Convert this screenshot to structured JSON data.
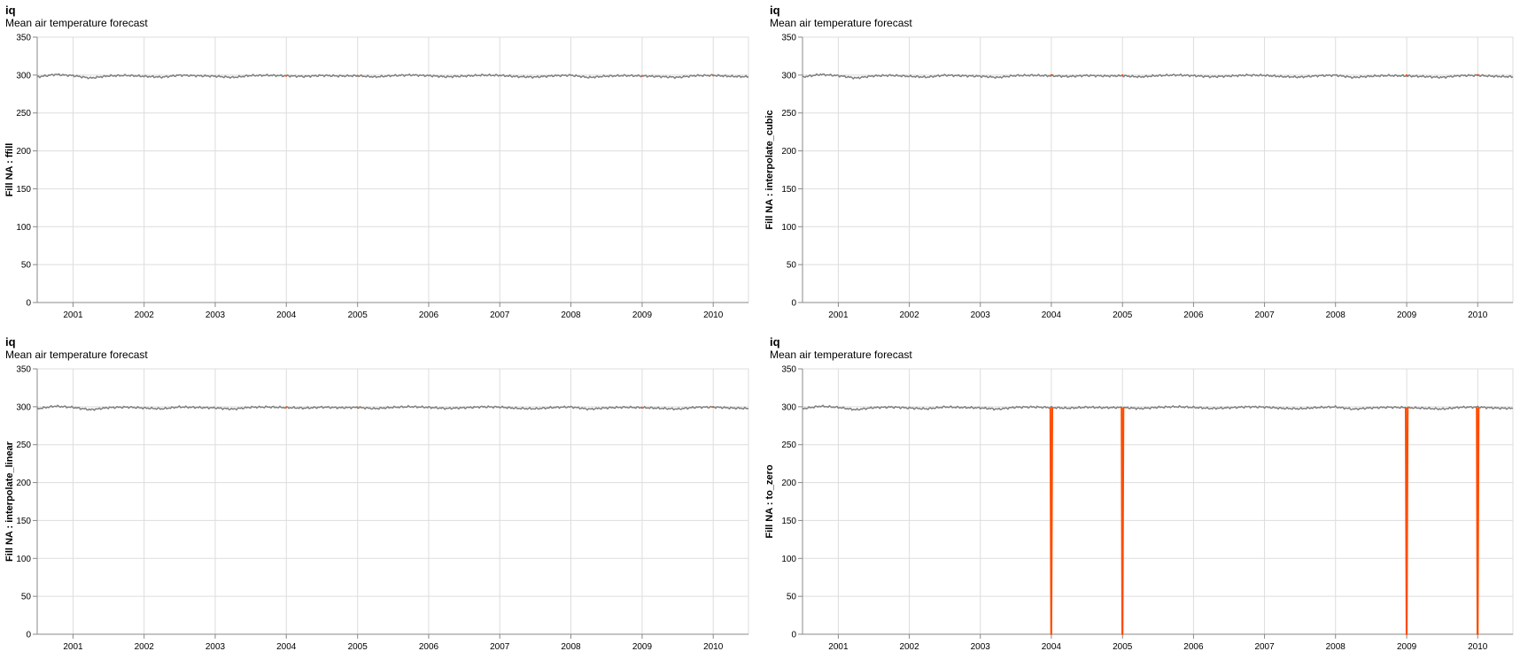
{
  "colors": {
    "observed": "#808080",
    "filled": "#ff4c00",
    "grid": "#dddddd",
    "axis": "#888888"
  },
  "chart_data": [
    {
      "type": "line",
      "title": "iq",
      "subtitle": "Mean air temperature forecast",
      "ylabel": "Fill NA : ffill",
      "xlabel": "",
      "ylim": [
        0,
        350
      ],
      "xlim": [
        "2000-07-01",
        "2010-07-01"
      ],
      "y_ticks": [
        0,
        50,
        100,
        150,
        200,
        250,
        300,
        350
      ],
      "x_ticks": [
        "2001",
        "2002",
        "2003",
        "2004",
        "2005",
        "2006",
        "2007",
        "2008",
        "2009",
        "2010"
      ],
      "grid": true,
      "series": [
        {
          "x": [
            "2000-07-01",
            "2000-10-01",
            "2001-01-01",
            "2001-04-01",
            "2001-07-01",
            "2001-10-01",
            "2002-01-01",
            "2002-04-01",
            "2002-07-01",
            "2002-10-01",
            "2003-01-01",
            "2003-04-01",
            "2003-07-01",
            "2003-10-01",
            "2004-01-01",
            "2004-04-01",
            "2004-07-01",
            "2004-10-01",
            "2005-01-01",
            "2005-04-01",
            "2005-07-01",
            "2005-10-01",
            "2006-01-01",
            "2006-04-01",
            "2006-07-01",
            "2006-10-01",
            "2007-01-01",
            "2007-04-01",
            "2007-07-01",
            "2007-10-01",
            "2008-01-01",
            "2008-04-01",
            "2008-07-01",
            "2008-10-01",
            "2009-01-01",
            "2009-04-01",
            "2009-07-01",
            "2009-10-01",
            "2010-01-01",
            "2010-04-01",
            "2010-07-01"
          ],
          "values": [
            297.5,
            300.8,
            299.2,
            296.1,
            298.9,
            299.6,
            298.4,
            297.3,
            299.8,
            299.1,
            298.5,
            296.9,
            299.4,
            299.7,
            299.0,
            298.2,
            299.5,
            298.8,
            299.1,
            297.6,
            299.3,
            300.1,
            299.2,
            297.8,
            298.7,
            299.9,
            299.6,
            298.0,
            297.4,
            299.1,
            299.8,
            296.9,
            298.6,
            299.4,
            298.9,
            298.1,
            297.0,
            299.3,
            299.6,
            298.4,
            297.8
          ]
        },
        {
          "x": [
            "2003-12-29",
            "2004-01-04",
            "2004-12-29",
            "2005-01-04",
            "2008-12-29",
            "2009-01-04",
            "2009-12-29",
            "2010-01-04"
          ],
          "values": [
            299.0,
            299.0,
            299.1,
            299.1,
            298.9,
            298.9,
            299.6,
            299.6
          ]
        }
      ]
    },
    {
      "type": "line",
      "title": "iq",
      "subtitle": "Mean air temperature forecast",
      "ylabel": "Fill NA : interpolate_cubic",
      "xlabel": "",
      "ylim": [
        0,
        350
      ],
      "xlim": [
        "2000-07-01",
        "2010-07-01"
      ],
      "y_ticks": [
        0,
        50,
        100,
        150,
        200,
        250,
        300,
        350
      ],
      "x_ticks": [
        "2001",
        "2002",
        "2003",
        "2004",
        "2005",
        "2006",
        "2007",
        "2008",
        "2009",
        "2010"
      ],
      "grid": true,
      "series": [
        {
          "x": [
            "2000-07-01",
            "2000-10-01",
            "2001-01-01",
            "2001-04-01",
            "2001-07-01",
            "2001-10-01",
            "2002-01-01",
            "2002-04-01",
            "2002-07-01",
            "2002-10-01",
            "2003-01-01",
            "2003-04-01",
            "2003-07-01",
            "2003-10-01",
            "2004-01-01",
            "2004-04-01",
            "2004-07-01",
            "2004-10-01",
            "2005-01-01",
            "2005-04-01",
            "2005-07-01",
            "2005-10-01",
            "2006-01-01",
            "2006-04-01",
            "2006-07-01",
            "2006-10-01",
            "2007-01-01",
            "2007-04-01",
            "2007-07-01",
            "2007-10-01",
            "2008-01-01",
            "2008-04-01",
            "2008-07-01",
            "2008-10-01",
            "2009-01-01",
            "2009-04-01",
            "2009-07-01",
            "2009-10-01",
            "2010-01-01",
            "2010-04-01",
            "2010-07-01"
          ],
          "values": [
            297.5,
            300.8,
            299.2,
            296.1,
            298.9,
            299.6,
            298.4,
            297.3,
            299.8,
            299.1,
            298.5,
            296.9,
            299.4,
            299.7,
            299.0,
            298.2,
            299.5,
            298.8,
            299.1,
            297.6,
            299.3,
            300.1,
            299.2,
            297.8,
            298.7,
            299.9,
            299.6,
            298.0,
            297.4,
            299.1,
            299.8,
            296.9,
            298.6,
            299.4,
            298.9,
            298.1,
            297.0,
            299.3,
            299.6,
            298.4,
            297.8
          ]
        },
        {
          "x": [
            "2003-12-29",
            "2004-01-01",
            "2004-01-04",
            "2004-12-29",
            "2005-01-01",
            "2005-01-04",
            "2008-12-29",
            "2009-01-01",
            "2009-01-04",
            "2009-12-29",
            "2010-01-01",
            "2010-01-04"
          ],
          "values": [
            299.0,
            300.2,
            299.0,
            299.1,
            300.0,
            299.1,
            298.9,
            299.9,
            298.9,
            299.6,
            300.3,
            299.6
          ]
        }
      ]
    },
    {
      "type": "line",
      "title": "iq",
      "subtitle": "Mean air temperature forecast",
      "ylabel": "Fill NA : interpolate_linear",
      "xlabel": "",
      "ylim": [
        0,
        350
      ],
      "xlim": [
        "2000-07-01",
        "2010-07-01"
      ],
      "y_ticks": [
        0,
        50,
        100,
        150,
        200,
        250,
        300,
        350
      ],
      "x_ticks": [
        "2001",
        "2002",
        "2003",
        "2004",
        "2005",
        "2006",
        "2007",
        "2008",
        "2009",
        "2010"
      ],
      "grid": true,
      "series": [
        {
          "x": [
            "2000-07-01",
            "2000-10-01",
            "2001-01-01",
            "2001-04-01",
            "2001-07-01",
            "2001-10-01",
            "2002-01-01",
            "2002-04-01",
            "2002-07-01",
            "2002-10-01",
            "2003-01-01",
            "2003-04-01",
            "2003-07-01",
            "2003-10-01",
            "2004-01-01",
            "2004-04-01",
            "2004-07-01",
            "2004-10-01",
            "2005-01-01",
            "2005-04-01",
            "2005-07-01",
            "2005-10-01",
            "2006-01-01",
            "2006-04-01",
            "2006-07-01",
            "2006-10-01",
            "2007-01-01",
            "2007-04-01",
            "2007-07-01",
            "2007-10-01",
            "2008-01-01",
            "2008-04-01",
            "2008-07-01",
            "2008-10-01",
            "2009-01-01",
            "2009-04-01",
            "2009-07-01",
            "2009-10-01",
            "2010-01-01",
            "2010-04-01",
            "2010-07-01"
          ],
          "values": [
            297.5,
            300.8,
            299.2,
            296.1,
            298.9,
            299.6,
            298.4,
            297.3,
            299.8,
            299.1,
            298.5,
            296.9,
            299.4,
            299.7,
            299.0,
            298.2,
            299.5,
            298.8,
            299.1,
            297.6,
            299.3,
            300.1,
            299.2,
            297.8,
            298.7,
            299.9,
            299.6,
            298.0,
            297.4,
            299.1,
            299.8,
            296.9,
            298.6,
            299.4,
            298.9,
            298.1,
            297.0,
            299.3,
            299.6,
            298.4,
            297.8
          ]
        },
        {
          "x": [
            "2003-12-29",
            "2004-01-04",
            "2004-12-29",
            "2005-01-04",
            "2008-12-29",
            "2009-01-04",
            "2009-12-29",
            "2010-01-04"
          ],
          "values": [
            299.0,
            299.4,
            299.1,
            299.5,
            298.9,
            299.2,
            299.6,
            299.8
          ]
        }
      ]
    },
    {
      "type": "line",
      "title": "iq",
      "subtitle": "Mean air temperature forecast",
      "ylabel": "Fill NA : to_zero",
      "xlabel": "",
      "ylim": [
        0,
        350
      ],
      "xlim": [
        "2000-07-01",
        "2010-07-01"
      ],
      "y_ticks": [
        0,
        50,
        100,
        150,
        200,
        250,
        300,
        350
      ],
      "x_ticks": [
        "2001",
        "2002",
        "2003",
        "2004",
        "2005",
        "2006",
        "2007",
        "2008",
        "2009",
        "2010"
      ],
      "grid": true,
      "series": [
        {
          "x": [
            "2000-07-01",
            "2000-10-01",
            "2001-01-01",
            "2001-04-01",
            "2001-07-01",
            "2001-10-01",
            "2002-01-01",
            "2002-04-01",
            "2002-07-01",
            "2002-10-01",
            "2003-01-01",
            "2003-04-01",
            "2003-07-01",
            "2003-10-01",
            "2004-01-01",
            "2004-04-01",
            "2004-07-01",
            "2004-10-01",
            "2005-01-01",
            "2005-04-01",
            "2005-07-01",
            "2005-10-01",
            "2006-01-01",
            "2006-04-01",
            "2006-07-01",
            "2006-10-01",
            "2007-01-01",
            "2007-04-01",
            "2007-07-01",
            "2007-10-01",
            "2008-01-01",
            "2008-04-01",
            "2008-07-01",
            "2008-10-01",
            "2009-01-01",
            "2009-04-01",
            "2009-07-01",
            "2009-10-01",
            "2010-01-01",
            "2010-04-01",
            "2010-07-01"
          ],
          "values": [
            297.5,
            300.8,
            299.2,
            296.1,
            298.9,
            299.6,
            298.4,
            297.3,
            299.8,
            299.1,
            298.5,
            296.9,
            299.4,
            299.7,
            299.0,
            298.2,
            299.5,
            298.8,
            299.1,
            297.6,
            299.3,
            300.1,
            299.2,
            297.8,
            298.7,
            299.9,
            299.6,
            298.0,
            297.4,
            299.1,
            299.8,
            296.9,
            298.6,
            299.4,
            298.9,
            298.1,
            297.0,
            299.3,
            299.6,
            298.4,
            297.8
          ]
        },
        {
          "x": [
            "2003-12-24",
            "2003-12-27",
            "2003-12-31",
            "2004-01-01",
            "2004-01-06",
            "2004-01-10",
            "2004-12-24",
            "2004-12-27",
            "2004-12-31",
            "2005-01-01",
            "2005-01-06",
            "2005-01-10",
            "2008-12-24",
            "2008-12-27",
            "2008-12-31",
            "2009-01-01",
            "2009-01-06",
            "2009-01-10",
            "2009-12-24",
            "2009-12-27",
            "2009-12-31",
            "2010-01-01",
            "2010-01-06",
            "2010-01-10"
          ],
          "values": [
            299.0,
            298.0,
            0,
            0,
            298.0,
            299.0,
            299.1,
            298.0,
            0,
            0,
            298.0,
            299.1,
            298.9,
            298.0,
            0,
            0,
            298.0,
            298.9,
            299.6,
            298.0,
            0,
            0,
            298.0,
            299.6
          ]
        }
      ]
    }
  ]
}
